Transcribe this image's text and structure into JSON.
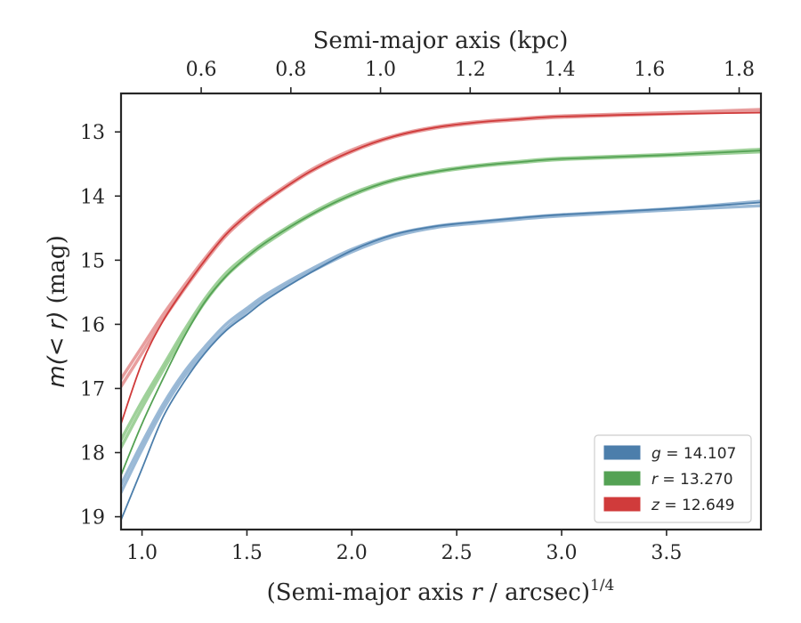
{
  "chart_data": {
    "type": "line",
    "title": "",
    "xlabel": "(Semi-major axis r / arcsec)",
    "xlabel_prefix": "(Semi-major axis ",
    "xlabel_var": "r",
    "xlabel_suffix": " / arcsec)",
    "xlabel_exponent": "1/4",
    "x2label": "Semi-major axis (kpc)",
    "ylabel": "m(< r) (mag)",
    "ylabel_math": "m(< r)",
    "ylabel_unit": "(mag)",
    "xlim": [
      0.9,
      3.95
    ],
    "ylim": [
      19.2,
      12.4
    ],
    "y_inverted": true,
    "x_ticks": [
      1.0,
      1.5,
      2.0,
      2.5,
      3.0,
      3.5
    ],
    "x_tick_labels": [
      "1.0",
      "1.5",
      "2.0",
      "2.5",
      "3.0",
      "3.5"
    ],
    "x2_ticks": [
      0.6,
      0.8,
      1.0,
      1.2,
      1.4,
      1.6,
      1.8
    ],
    "x2_tick_labels": [
      "0.6",
      "0.8",
      "1.0",
      "1.2",
      "1.4",
      "1.6",
      "1.8"
    ],
    "x2_scale_kpc_per_x": 0.468,
    "y_ticks": [
      13,
      14,
      15,
      16,
      17,
      18,
      19
    ],
    "y_tick_labels": [
      "13",
      "14",
      "15",
      "16",
      "17",
      "18",
      "19"
    ],
    "grid": false,
    "legend_position": "bottom-right",
    "series": [
      {
        "name": "g = 14.107",
        "legend_var": "g",
        "legend_value": "= 14.107",
        "color": "#4c7eab",
        "band_color": "#8fb1d2",
        "x": [
          0.9,
          1.0,
          1.1,
          1.2,
          1.3,
          1.4,
          1.5,
          1.6,
          1.8,
          2.0,
          2.2,
          2.4,
          2.6,
          2.8,
          3.0,
          3.5,
          3.95
        ],
        "model": [
          19.05,
          18.25,
          17.45,
          16.9,
          16.45,
          16.1,
          15.85,
          15.6,
          15.2,
          14.85,
          14.6,
          14.47,
          14.4,
          14.34,
          14.29,
          14.2,
          14.1
        ],
        "band_upper": [
          18.5,
          17.85,
          17.25,
          16.75,
          16.35,
          16.0,
          15.75,
          15.52,
          15.15,
          14.83,
          14.6,
          14.47,
          14.4,
          14.34,
          14.29,
          14.2,
          14.08
        ],
        "band_lower": [
          18.62,
          17.95,
          17.33,
          16.82,
          16.42,
          16.07,
          15.8,
          15.56,
          15.19,
          14.87,
          14.63,
          14.49,
          14.42,
          14.36,
          14.31,
          14.22,
          14.15
        ]
      },
      {
        "name": "r = 13.270",
        "legend_var": "r",
        "legend_value": "= 13.270",
        "color": "#54a254",
        "band_color": "#95cc8f",
        "x": [
          0.9,
          1.0,
          1.1,
          1.2,
          1.3,
          1.4,
          1.5,
          1.6,
          1.8,
          2.0,
          2.2,
          2.4,
          2.6,
          2.8,
          3.0,
          3.5,
          3.95
        ],
        "model": [
          18.35,
          17.55,
          16.85,
          16.2,
          15.65,
          15.25,
          14.95,
          14.7,
          14.3,
          13.98,
          13.75,
          13.62,
          13.53,
          13.47,
          13.42,
          13.36,
          13.29
        ],
        "band_upper": [
          17.8,
          17.2,
          16.65,
          16.1,
          15.6,
          15.2,
          14.92,
          14.68,
          14.28,
          13.96,
          13.74,
          13.61,
          13.52,
          13.46,
          13.41,
          13.35,
          13.27
        ],
        "band_lower": [
          17.92,
          17.3,
          16.72,
          16.16,
          15.65,
          15.25,
          14.96,
          14.72,
          14.31,
          13.99,
          13.76,
          13.63,
          13.54,
          13.48,
          13.43,
          13.37,
          13.31
        ]
      },
      {
        "name": "z = 12.649",
        "legend_var": "z",
        "legend_value": "= 12.649",
        "color": "#d03b3b",
        "band_color": "#e69393",
        "x": [
          0.9,
          1.0,
          1.1,
          1.2,
          1.3,
          1.4,
          1.5,
          1.6,
          1.8,
          2.0,
          2.2,
          2.4,
          2.6,
          2.8,
          3.0,
          3.5,
          3.95
        ],
        "model": [
          17.55,
          16.6,
          15.95,
          15.45,
          15.0,
          14.6,
          14.3,
          14.05,
          13.62,
          13.3,
          13.07,
          12.93,
          12.85,
          12.8,
          12.76,
          12.72,
          12.7
        ],
        "band_upper": [
          16.85,
          16.35,
          15.85,
          15.4,
          14.97,
          14.58,
          14.28,
          14.03,
          13.6,
          13.28,
          13.06,
          12.92,
          12.84,
          12.79,
          12.75,
          12.7,
          12.65
        ],
        "band_lower": [
          16.97,
          16.45,
          15.93,
          15.46,
          15.02,
          14.62,
          14.32,
          14.06,
          13.63,
          13.31,
          13.08,
          12.94,
          12.86,
          12.81,
          12.77,
          12.72,
          12.68
        ]
      }
    ]
  }
}
